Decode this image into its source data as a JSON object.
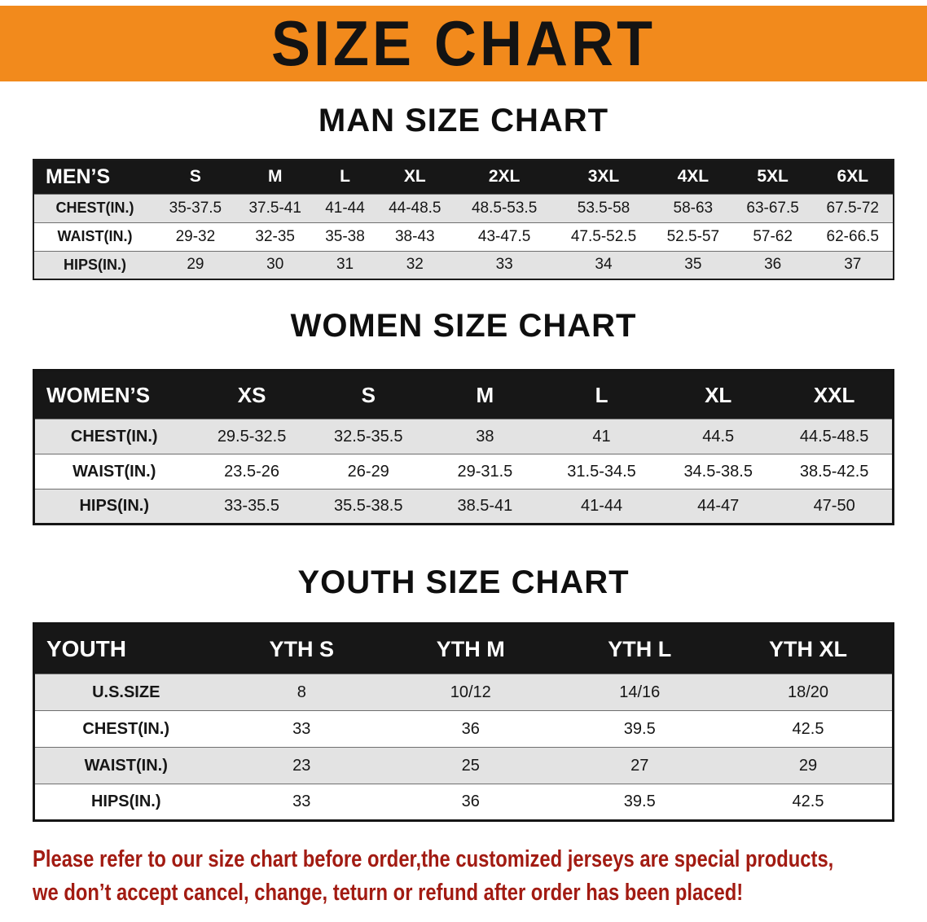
{
  "banner": {
    "title": "SIZE CHART"
  },
  "chart_data": [
    {
      "type": "table",
      "title": "MAN SIZE CHART",
      "columns": [
        "MEN’S",
        "S",
        "M",
        "L",
        "XL",
        "2XL",
        "3XL",
        "4XL",
        "5XL",
        "6XL"
      ],
      "rows": [
        [
          "CHEST(IN.)",
          "35-37.5",
          "37.5-41",
          "41-44",
          "44-48.5",
          "48.5-53.5",
          "53.5-58",
          "58-63",
          "63-67.5",
          "67.5-72"
        ],
        [
          "WAIST(IN.)",
          "29-32",
          "32-35",
          "35-38",
          "38-43",
          "43-47.5",
          "47.5-52.5",
          "52.5-57",
          "57-62",
          "62-66.5"
        ],
        [
          "HIPS(IN.)",
          "29",
          "30",
          "31",
          "32",
          "33",
          "34",
          "35",
          "36",
          "37"
        ]
      ]
    },
    {
      "type": "table",
      "title": "WOMEN SIZE CHART",
      "columns": [
        "WOMEN’S",
        "XS",
        "S",
        "M",
        "L",
        "XL",
        "XXL"
      ],
      "rows": [
        [
          "CHEST(IN.)",
          "29.5-32.5",
          "32.5-35.5",
          "38",
          "41",
          "44.5",
          "44.5-48.5"
        ],
        [
          "WAIST(IN.)",
          "23.5-26",
          "26-29",
          "29-31.5",
          "31.5-34.5",
          "34.5-38.5",
          "38.5-42.5"
        ],
        [
          "HIPS(IN.)",
          "33-35.5",
          "35.5-38.5",
          "38.5-41",
          "41-44",
          "44-47",
          "47-50"
        ]
      ]
    },
    {
      "type": "table",
      "title": "YOUTH SIZE CHART",
      "columns": [
        "YOUTH",
        "YTH S",
        "YTH M",
        "YTH L",
        "YTH XL"
      ],
      "rows": [
        [
          "U.S.SIZE",
          "8",
          "10/12",
          "14/16",
          "18/20"
        ],
        [
          "CHEST(IN.)",
          "33",
          "36",
          "39.5",
          "42.5"
        ],
        [
          "WAIST(IN.)",
          "23",
          "25",
          "27",
          "29"
        ],
        [
          "HIPS(IN.)",
          "33",
          "36",
          "39.5",
          "42.5"
        ]
      ]
    }
  ],
  "footer": {
    "line1": "Please refer to our size chart before order,the customized jerseys are special products,",
    "line2": "we don’t accept cancel, change, teturn or refund after order has been placed!"
  },
  "colors": {
    "banner_orange": "#f28a1c",
    "table_header_black": "#171717",
    "row_shade_gray": "#e3e3e3",
    "row_plain_white": "#ffffff",
    "footer_red": "#a21b12"
  }
}
